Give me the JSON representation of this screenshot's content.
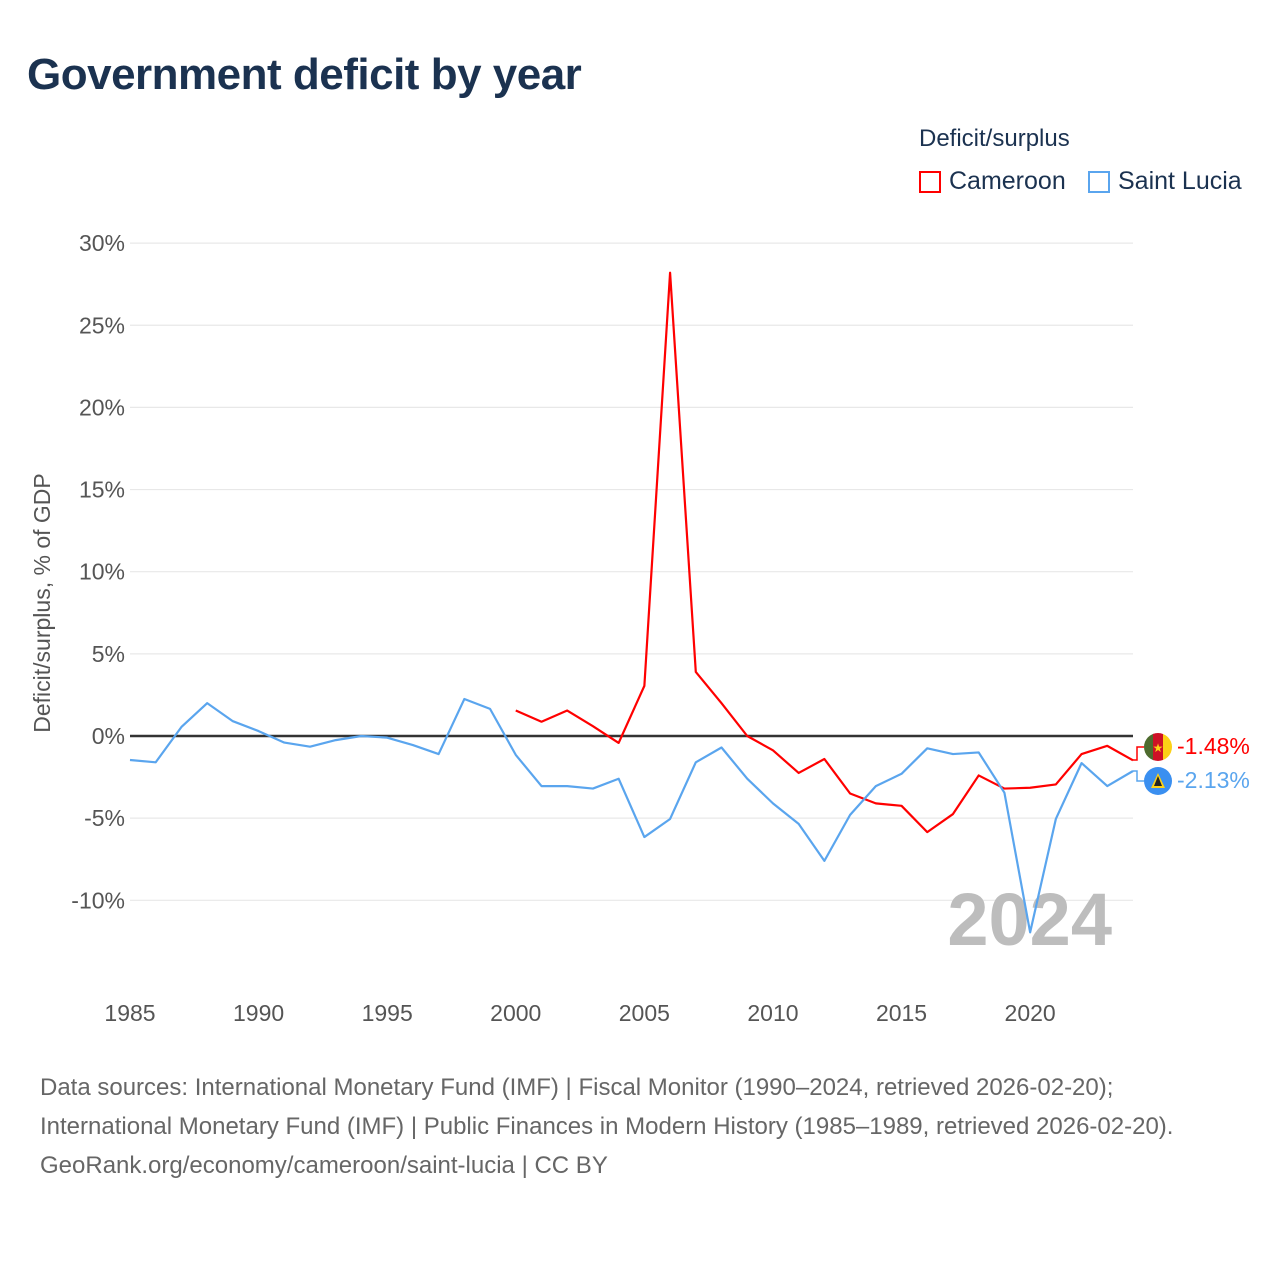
{
  "title": "Government deficit by year",
  "legend": {
    "title": "Deficit/surplus",
    "items": [
      "Cameroon",
      "Saint Lucia"
    ]
  },
  "colors": {
    "cameroon": "#ff0000",
    "saint_lucia": "#5aa5ee",
    "zero": "#333333",
    "grid": "#e8e8e8"
  },
  "end_labels": {
    "cameroon": "-1.48%",
    "saint_lucia": "-2.13%"
  },
  "flag_icons": {
    "cameroon": "cameroon-flag-icon",
    "saint_lucia": "saint-lucia-flag-icon"
  },
  "year_watermark": "2024",
  "footer": {
    "line1": "Data sources: International Monetary Fund (IMF) | Fiscal Monitor (1990–2024, retrieved 2026-02-20); International Monetary Fund (IMF) | Public Finances in Modern History (1985–1989, retrieved 2026-02-20).",
    "line2": "GeoRank.org/economy/cameroon/saint-lucia | CC BY"
  },
  "chart_data": {
    "type": "line",
    "title": "Government deficit by year",
    "xlabel": "",
    "ylabel": "Deficit/surplus, % of GDP",
    "xlim": [
      1985,
      2024
    ],
    "ylim": [
      -14,
      30
    ],
    "grid": true,
    "legend_position": "top-right",
    "x_ticks": [
      "1985",
      "1990",
      "1995",
      "2000",
      "2005",
      "2010",
      "2015",
      "2020"
    ],
    "y_ticks": [
      {
        "v": 30,
        "label": "30%"
      },
      {
        "v": 25,
        "label": "25%"
      },
      {
        "v": 20,
        "label": "20%"
      },
      {
        "v": 15,
        "label": "15%"
      },
      {
        "v": 10,
        "label": "10%"
      },
      {
        "v": 5,
        "label": "5%"
      },
      {
        "v": 0,
        "label": "0%"
      },
      {
        "v": -5,
        "label": "-5%"
      },
      {
        "v": -10,
        "label": "-10%"
      }
    ],
    "series": [
      {
        "name": "Cameroon",
        "start": 2000,
        "values": [
          1.55,
          0.87,
          1.55,
          0.6,
          -0.42,
          3.05,
          28.2,
          3.9,
          2.0,
          0.0,
          -0.87,
          -2.25,
          -1.4,
          -3.5,
          -4.1,
          -4.25,
          -5.85,
          -4.75,
          -2.4,
          -3.2,
          -3.15,
          -2.95,
          -1.1,
          -0.6,
          -1.48
        ]
      },
      {
        "name": "Saint Lucia",
        "start": 1985,
        "values": [
          -1.46,
          -1.6,
          0.55,
          2.0,
          0.9,
          0.3,
          -0.4,
          -0.65,
          -0.25,
          0.0,
          -0.1,
          -0.55,
          -1.1,
          2.25,
          1.65,
          -1.15,
          -3.05,
          -3.05,
          -3.2,
          -2.6,
          -6.15,
          -5.05,
          -1.6,
          -0.7,
          -2.6,
          -4.1,
          -5.35,
          -7.6,
          -4.8,
          -3.05,
          -2.3,
          -0.75,
          -1.1,
          -1.0,
          -3.45,
          -11.95,
          -5.05,
          -1.65,
          -3.05,
          -2.13
        ]
      }
    ]
  }
}
